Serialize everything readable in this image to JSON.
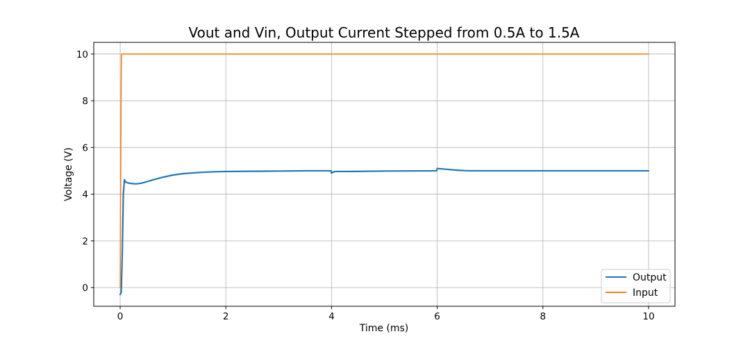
{
  "chart_data": {
    "type": "line",
    "title": "Vout and Vin, Output Current Stepped from 0.5A to 1.5A",
    "xlabel": "Time (ms)",
    "ylabel": "Voltage (V)",
    "xlim": [
      -0.5,
      10.5
    ],
    "ylim": [
      -0.8,
      10.5
    ],
    "xticks": [
      0,
      2,
      4,
      6,
      8,
      10
    ],
    "yticks": [
      0,
      2,
      4,
      6,
      8,
      10
    ],
    "grid": true,
    "legend_position": "bottom-right",
    "series": [
      {
        "name": "Output",
        "color": "#1f77b4",
        "x": [
          0,
          0.02,
          0.04,
          0.06,
          0.08,
          0.1,
          0.15,
          0.2,
          0.3,
          0.4,
          0.5,
          0.6,
          0.8,
          1.0,
          1.2,
          1.5,
          1.8,
          2.0,
          2.5,
          3.0,
          3.5,
          3.99,
          4.0,
          4.02,
          4.05,
          4.1,
          4.3,
          5.0,
          5.99,
          6.0,
          6.05,
          6.2,
          6.4,
          6.6,
          7.0,
          8.0,
          9.0,
          10.0
        ],
        "y": [
          -0.3,
          -0.2,
          1.5,
          4.0,
          4.62,
          4.52,
          4.48,
          4.46,
          4.44,
          4.47,
          4.53,
          4.6,
          4.72,
          4.82,
          4.88,
          4.93,
          4.96,
          4.97,
          4.98,
          4.99,
          5.0,
          5.0,
          4.9,
          4.93,
          4.96,
          4.97,
          4.97,
          4.99,
          5.0,
          5.1,
          5.09,
          5.06,
          5.02,
          5.0,
          5.0,
          5.0,
          5.0,
          5.0
        ]
      },
      {
        "name": "Input",
        "color": "#ff7f0e",
        "x": [
          0,
          0.02,
          0.025,
          10.0
        ],
        "y": [
          0,
          9.0,
          10.0,
          10.0
        ]
      }
    ]
  }
}
